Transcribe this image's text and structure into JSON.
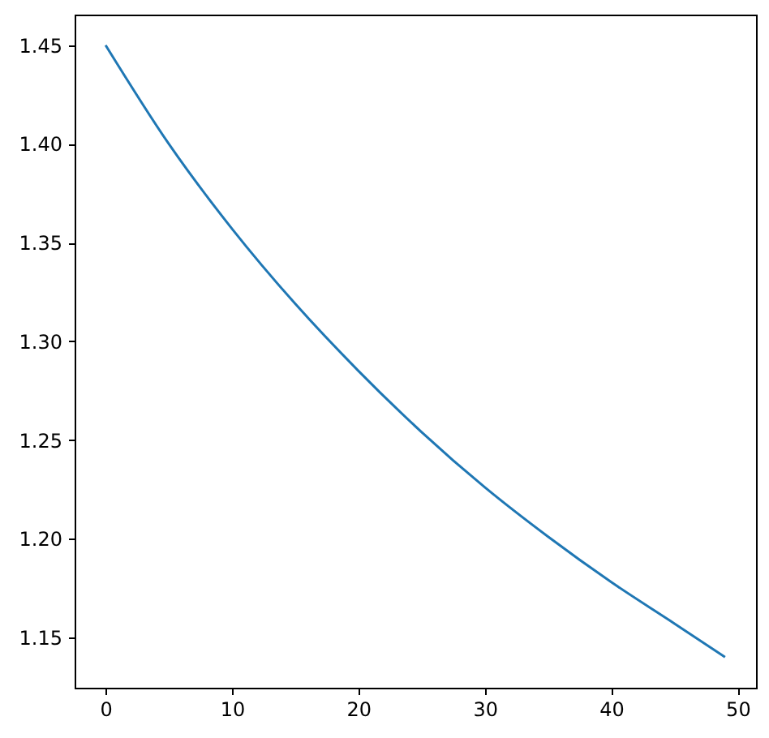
{
  "chart_data": {
    "type": "line",
    "x": [
      0,
      5,
      10,
      15,
      20,
      25,
      30,
      35,
      40,
      45,
      49
    ],
    "series": [
      {
        "color": "#1f77b4",
        "values": [
          1.45,
          1.4,
          1.357,
          1.319,
          1.285,
          1.254,
          1.226,
          1.201,
          1.178,
          1.157,
          1.14
        ]
      }
    ],
    "xlim": [
      -2.45,
      51.45
    ],
    "xticks": [
      0,
      10,
      20,
      30,
      40,
      50
    ],
    "ylim": [
      1.1245,
      1.4655
    ],
    "yticks": [
      1.15,
      {
        "value": 1.2,
        "label": "1.20"
      },
      1.25,
      {
        "value": 1.3,
        "label": "1.30"
      },
      1.35,
      {
        "value": 1.4,
        "label": "1.40"
      },
      1.45
    ],
    "grid": false,
    "marker": "none",
    "line_style": "solid"
  }
}
